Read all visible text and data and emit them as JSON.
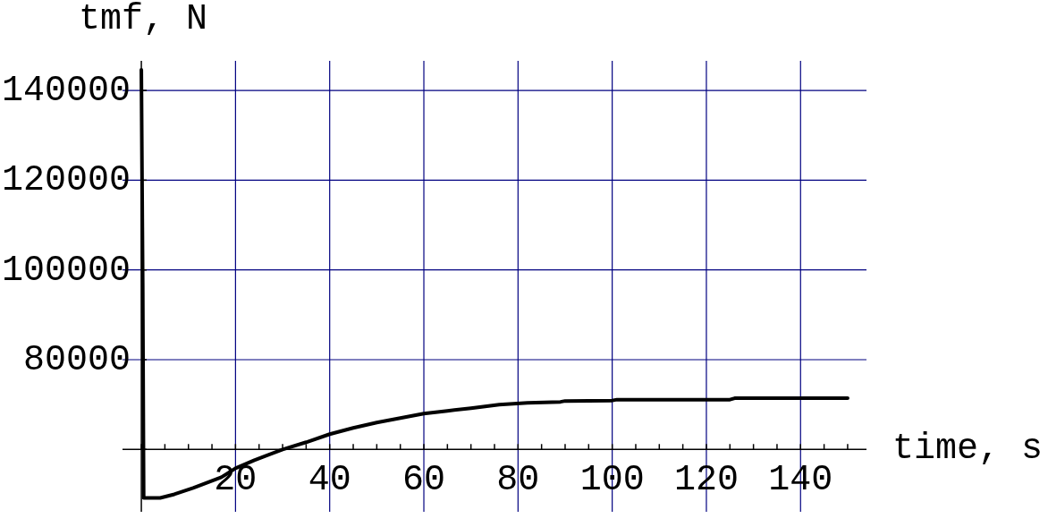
{
  "chart_data": {
    "type": "line",
    "xlabel": "time, s",
    "ylabel": "tmf, N",
    "x": [
      0,
      0.3,
      0.5,
      4,
      7,
      11,
      17,
      20,
      24,
      30,
      35,
      40,
      45,
      50,
      55,
      60,
      65,
      70,
      76,
      82,
      89,
      90,
      100,
      101,
      125,
      126,
      150
    ],
    "series": [
      {
        "color": "#000000",
        "values": [
          144600,
          97000,
          49200,
          49200,
          50000,
          51400,
          53800,
          55800,
          57600,
          60000,
          61600,
          63400,
          64800,
          66000,
          67000,
          68000,
          68600,
          69200,
          70000,
          70400,
          70600,
          70800,
          70900,
          71100,
          71100,
          71400,
          71400
        ]
      }
    ],
    "xlim": [
      -4,
      154
    ],
    "ylim": [
      46100,
      146600
    ],
    "xticks": [
      {
        "value": 0,
        "label": null
      },
      20,
      40,
      60,
      80,
      100,
      120,
      140
    ],
    "yticks": [
      {
        "value": 60000,
        "label": null
      },
      80000,
      100000,
      120000,
      140000
    ],
    "grid": true
  }
}
